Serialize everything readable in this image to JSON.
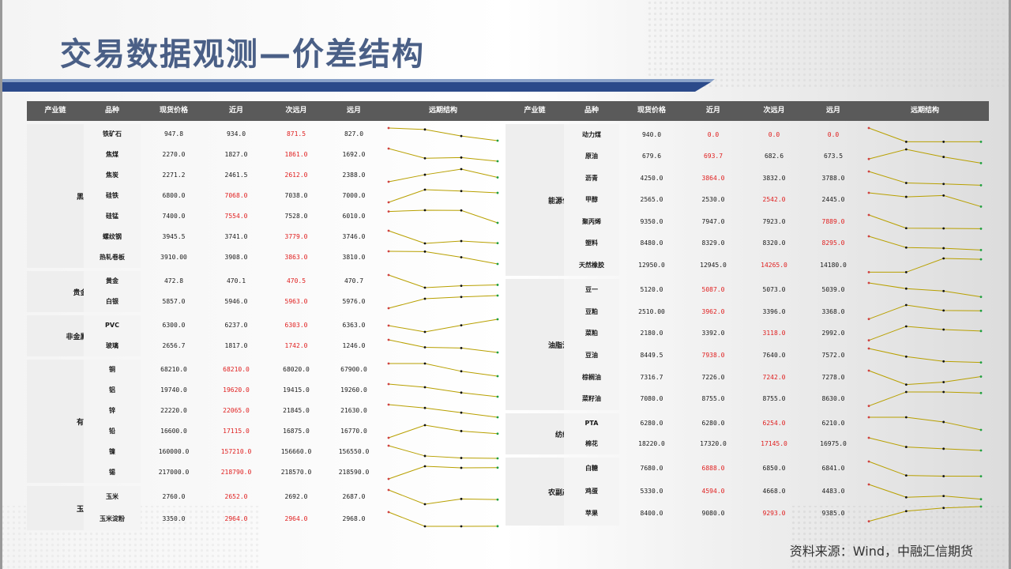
{
  "page": {
    "title": "交易数据观测—价差结构",
    "source": "资料来源：Wind，中融汇信期货"
  },
  "headers": {
    "left": [
      "产业链",
      "品种",
      "现货价格",
      "近月",
      "次远月",
      "远月",
      "远期结构"
    ],
    "right": [
      "产业链",
      "品种",
      "现货价格",
      "近月",
      "次远月",
      "远月",
      "远期结构"
    ]
  },
  "colors": {
    "header_bg": "#5a5a5a",
    "accent": "#2b4a8a",
    "highlight": "#e02020",
    "spark_line": "#b8a000"
  },
  "left_groups": [
    {
      "name": "黑色",
      "rows": [
        {
          "item": "铁矿石",
          "spot": "947.8",
          "near": "934.0",
          "next": "871.5",
          "far": "827.0",
          "hl": [
            2
          ]
        },
        {
          "item": "焦煤",
          "spot": "2270.0",
          "near": "1827.0",
          "next": "1861.0",
          "far": "1692.0",
          "hl": [
            2
          ]
        },
        {
          "item": "焦炭",
          "spot": "2271.2",
          "near": "2461.5",
          "next": "2612.0",
          "far": "2388.0",
          "hl": [
            2
          ]
        },
        {
          "item": "硅铁",
          "spot": "6800.0",
          "near": "7068.0",
          "next": "7038.0",
          "far": "7000.0",
          "hl": [
            1
          ]
        },
        {
          "item": "硅锰",
          "spot": "7400.0",
          "near": "7554.0",
          "next": "7528.0",
          "far": "6010.0",
          "hl": [
            1
          ]
        },
        {
          "item": "螺纹钢",
          "spot": "3945.5",
          "near": "3741.0",
          "next": "3779.0",
          "far": "3746.0",
          "hl": [
            2
          ]
        },
        {
          "item": "热轧卷板",
          "spot": "3910.00",
          "near": "3908.0",
          "next": "3863.0",
          "far": "3810.0",
          "hl": [
            2
          ]
        }
      ]
    },
    {
      "name": "贵金属",
      "rows": [
        {
          "item": "黄金",
          "spot": "472.8",
          "near": "470.1",
          "next": "470.5",
          "far": "470.7",
          "hl": [
            2
          ]
        },
        {
          "item": "白银",
          "spot": "5857.0",
          "near": "5946.0",
          "next": "5963.0",
          "far": "5976.0",
          "hl": [
            2
          ]
        }
      ]
    },
    {
      "name": "非金属建材",
      "rows": [
        {
          "item": "PVC",
          "spot": "6300.0",
          "near": "6237.0",
          "next": "6303.0",
          "far": "6363.0",
          "hl": [
            2
          ]
        },
        {
          "item": "玻璃",
          "spot": "2656.7",
          "near": "1817.0",
          "next": "1742.0",
          "far": "1246.0",
          "hl": [
            2
          ]
        }
      ]
    },
    {
      "name": "有色",
      "rows": [
        {
          "item": "铜",
          "spot": "68210.0",
          "near": "68210.0",
          "next": "68020.0",
          "far": "67900.0",
          "hl": [
            1
          ]
        },
        {
          "item": "铝",
          "spot": "19740.0",
          "near": "19620.0",
          "next": "19415.0",
          "far": "19260.0",
          "hl": [
            1
          ]
        },
        {
          "item": "锌",
          "spot": "22220.0",
          "near": "22065.0",
          "next": "21845.0",
          "far": "21630.0",
          "hl": [
            1
          ]
        },
        {
          "item": "铅",
          "spot": "16600.0",
          "near": "17115.0",
          "next": "16875.0",
          "far": "16770.0",
          "hl": [
            1
          ]
        },
        {
          "item": "镍",
          "spot": "160000.0",
          "near": "157210.0",
          "next": "156660.0",
          "far": "156550.0",
          "hl": [
            1
          ]
        },
        {
          "item": "锡",
          "spot": "217000.0",
          "near": "218790.0",
          "next": "218570.0",
          "far": "218590.0",
          "hl": [
            1
          ]
        }
      ]
    },
    {
      "name": "玉米",
      "rows": [
        {
          "item": "玉米",
          "spot": "2760.0",
          "near": "2652.0",
          "next": "2692.0",
          "far": "2687.0",
          "hl": [
            1
          ]
        },
        {
          "item": "玉米淀粉",
          "spot": "3350.0",
          "near": "2964.0",
          "next": "2964.0",
          "far": "2968.0",
          "hl": [
            1,
            2
          ]
        }
      ]
    }
  ],
  "right_groups": [
    {
      "name": "能源化工",
      "rows": [
        {
          "item": "动力煤",
          "spot": "940.0",
          "near": "0.0",
          "next": "0.0",
          "far": "0.0",
          "hl": [
            1,
            2,
            3
          ]
        },
        {
          "item": "原油",
          "spot": "679.6",
          "near": "693.7",
          "next": "682.6",
          "far": "673.5",
          "hl": [
            1
          ]
        },
        {
          "item": "沥青",
          "spot": "4250.0",
          "near": "3864.0",
          "next": "3832.0",
          "far": "3788.0",
          "hl": [
            1
          ]
        },
        {
          "item": "甲醇",
          "spot": "2565.0",
          "near": "2530.0",
          "next": "2542.0",
          "far": "2445.0",
          "hl": [
            2
          ]
        },
        {
          "item": "聚丙烯",
          "spot": "9350.0",
          "near": "7947.0",
          "next": "7923.0",
          "far": "7889.0",
          "hl": [
            3
          ]
        },
        {
          "item": "塑料",
          "spot": "8480.0",
          "near": "8329.0",
          "next": "8320.0",
          "far": "8295.0",
          "hl": [
            3
          ]
        },
        {
          "item": "天然橡胶",
          "spot": "12950.0",
          "near": "12945.0",
          "next": "14265.0",
          "far": "14180.0",
          "hl": [
            2
          ]
        }
      ]
    },
    {
      "name": "油脂油料",
      "rows": [
        {
          "item": "豆一",
          "spot": "5120.0",
          "near": "5087.0",
          "next": "5073.0",
          "far": "5039.0",
          "hl": [
            1
          ]
        },
        {
          "item": "豆粕",
          "spot": "2510.00",
          "near": "3962.0",
          "next": "3396.0",
          "far": "3368.0",
          "hl": [
            1
          ]
        },
        {
          "item": "菜粕",
          "spot": "2180.0",
          "near": "3392.0",
          "next": "3118.0",
          "far": "2992.0",
          "hl": [
            2
          ]
        },
        {
          "item": "豆油",
          "spot": "8449.5",
          "near": "7938.0",
          "next": "7640.0",
          "far": "7572.0",
          "hl": [
            1
          ]
        },
        {
          "item": "棕榈油",
          "spot": "7316.7",
          "near": "7226.0",
          "next": "7242.0",
          "far": "7278.0",
          "hl": [
            2
          ]
        },
        {
          "item": "菜籽油",
          "spot": "7080.0",
          "near": "8755.0",
          "next": "8755.0",
          "far": "8630.0",
          "hl": []
        }
      ]
    },
    {
      "name": "纺织",
      "rows": [
        {
          "item": "PTA",
          "spot": "6280.0",
          "near": "6280.0",
          "next": "6254.0",
          "far": "6210.0",
          "hl": [
            2
          ]
        },
        {
          "item": "棉花",
          "spot": "18220.0",
          "near": "17320.0",
          "next": "17145.0",
          "far": "16975.0",
          "hl": [
            2
          ]
        }
      ]
    },
    {
      "name": "农副产品",
      "rows": [
        {
          "item": "白糖",
          "spot": "7680.0",
          "near": "6888.0",
          "next": "6850.0",
          "far": "6841.0",
          "hl": [
            1
          ]
        },
        {
          "item": "鸡蛋",
          "spot": "5330.0",
          "near": "4594.0",
          "next": "4668.0",
          "far": "4483.0",
          "hl": [
            1
          ]
        },
        {
          "item": "苹果",
          "spot": "8400.0",
          "near": "9080.0",
          "next": "9293.0",
          "far": "9385.0",
          "hl": [
            2
          ]
        }
      ]
    }
  ]
}
